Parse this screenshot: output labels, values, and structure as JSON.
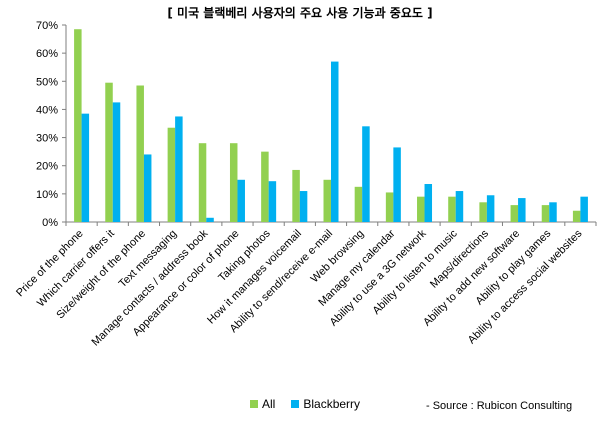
{
  "chart_data": {
    "type": "bar",
    "title": "[ 미국 블랙베리 사용자의 주요 사용 기능과 중요도 ]",
    "ylim": [
      0,
      70
    ],
    "yticks": [
      "0%",
      "10%",
      "20%",
      "30%",
      "40%",
      "50%",
      "60%",
      "70%"
    ],
    "unit": "%",
    "categories": [
      "Price of the phone",
      "Which carrier offers it",
      "Size/weight of the phone",
      "Text messaging",
      "Manage contacts / address book",
      "Appearance or color of phone",
      "Taking photos",
      "How it manages voicemail",
      "Ability to send/receive e-mail",
      "Web browsing",
      "Manage my calendar",
      "Ability to use a 3G network",
      "Ability to listen to music",
      "Maps/directions",
      "Ability to add new software",
      "Ability to play games",
      "Ability to access social websites"
    ],
    "series": [
      {
        "name": "All",
        "color": "#92d050",
        "values": [
          68.5,
          49.5,
          48.5,
          33.5,
          28,
          28,
          25,
          18.5,
          15,
          12.5,
          10.5,
          9,
          9,
          7,
          6,
          6,
          4
        ]
      },
      {
        "name": "Blackberry",
        "color": "#00b0f0",
        "values": [
          38.5,
          42.5,
          24,
          37.5,
          1.5,
          15,
          14.5,
          11,
          57,
          34,
          26.5,
          13.5,
          11,
          9.5,
          8.5,
          7,
          9
        ]
      }
    ],
    "legend_position": "bottom",
    "grid": false
  },
  "source_note": "- Source : Rubicon Consulting"
}
